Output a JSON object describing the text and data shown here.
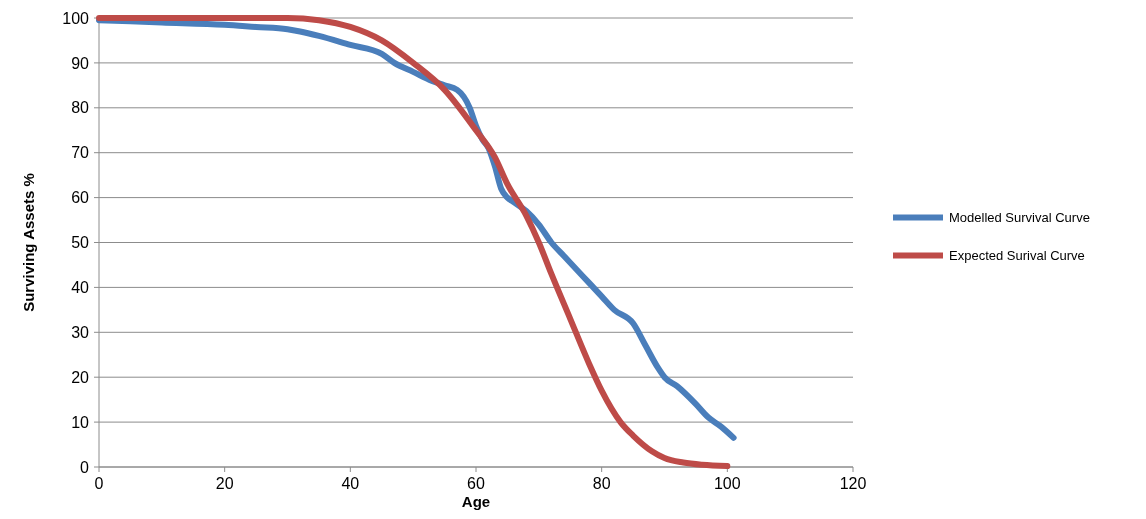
{
  "chart_data": {
    "type": "line",
    "xlabel": "Age",
    "ylabel": "Surviving Assets %",
    "xlim": [
      0,
      120
    ],
    "xticks": [
      0,
      20,
      40,
      60,
      80,
      100,
      120
    ],
    "ylim": [
      0,
      100
    ],
    "yticks": [
      0,
      10,
      20,
      30,
      40,
      50,
      60,
      70,
      80,
      90,
      100
    ],
    "grid": "y",
    "legend": "right",
    "marker": "none",
    "line_style": "solid",
    "series": [
      {
        "name": "Modelled Survival Curve",
        "color": "#4a7ebb",
        "x": [
          0,
          10,
          20,
          25,
          30,
          32,
          35,
          40,
          45,
          47,
          50,
          53,
          55,
          57,
          59,
          60,
          61,
          62,
          63,
          64,
          65,
          66,
          68,
          70,
          72,
          74,
          76,
          78,
          80,
          82,
          85,
          87,
          89,
          90,
          92,
          95,
          97,
          99,
          101
        ],
        "values": [
          99.5,
          99,
          98.5,
          98,
          97.5,
          97,
          96,
          94,
          92,
          90,
          88,
          86,
          85,
          84,
          80,
          76,
          73,
          71,
          67,
          62,
          60,
          59,
          57,
          54,
          50,
          47,
          44,
          41,
          38,
          35,
          32,
          27,
          22,
          20,
          18,
          14,
          11,
          9,
          6.5
        ]
      },
      {
        "name": "Expected Surival Curve",
        "color": "#be4b48",
        "x": [
          0,
          30,
          35,
          40,
          45,
          50,
          55,
          60,
          63,
          65,
          68,
          70,
          72,
          75,
          78,
          80,
          83,
          85,
          88,
          90,
          93,
          96,
          100
        ],
        "values": [
          100,
          100,
          99.5,
          98,
          95,
          90,
          84,
          75,
          69,
          63,
          56,
          50,
          43,
          33,
          23,
          17,
          10,
          7,
          3.5,
          2,
          1,
          0.5,
          0.2
        ]
      }
    ]
  }
}
